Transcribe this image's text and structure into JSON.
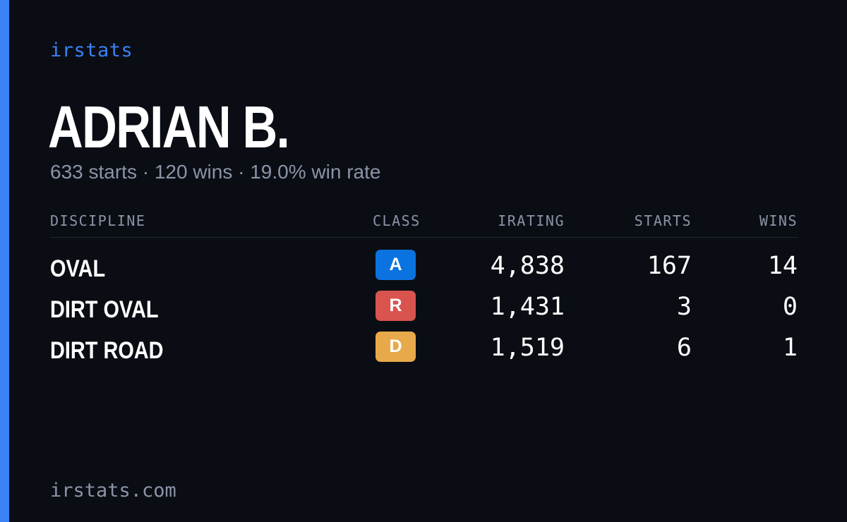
{
  "brand": "irstats",
  "driver": {
    "name": "ADRIAN B.",
    "summary": "633 starts · 120 wins · 19.0% win rate"
  },
  "table": {
    "headers": {
      "discipline": "DISCIPLINE",
      "class": "CLASS",
      "irating": "IRATING",
      "starts": "STARTS",
      "wins": "WINS"
    },
    "rows": [
      {
        "discipline": "OVAL",
        "class": "A",
        "class_color": "#0b73e0",
        "irating": "4,838",
        "starts": "167",
        "wins": "14"
      },
      {
        "discipline": "DIRT OVAL",
        "class": "R",
        "class_color": "#d9534f",
        "irating": "1,431",
        "starts": "3",
        "wins": "0"
      },
      {
        "discipline": "DIRT ROAD",
        "class": "D",
        "class_color": "#e8a94a",
        "irating": "1,519",
        "starts": "6",
        "wins": "1"
      }
    ]
  },
  "footer": "irstats.com",
  "colors": {
    "accent": "#3b82f6",
    "background": "#0a0d14",
    "muted_text": "#8b94a7"
  }
}
